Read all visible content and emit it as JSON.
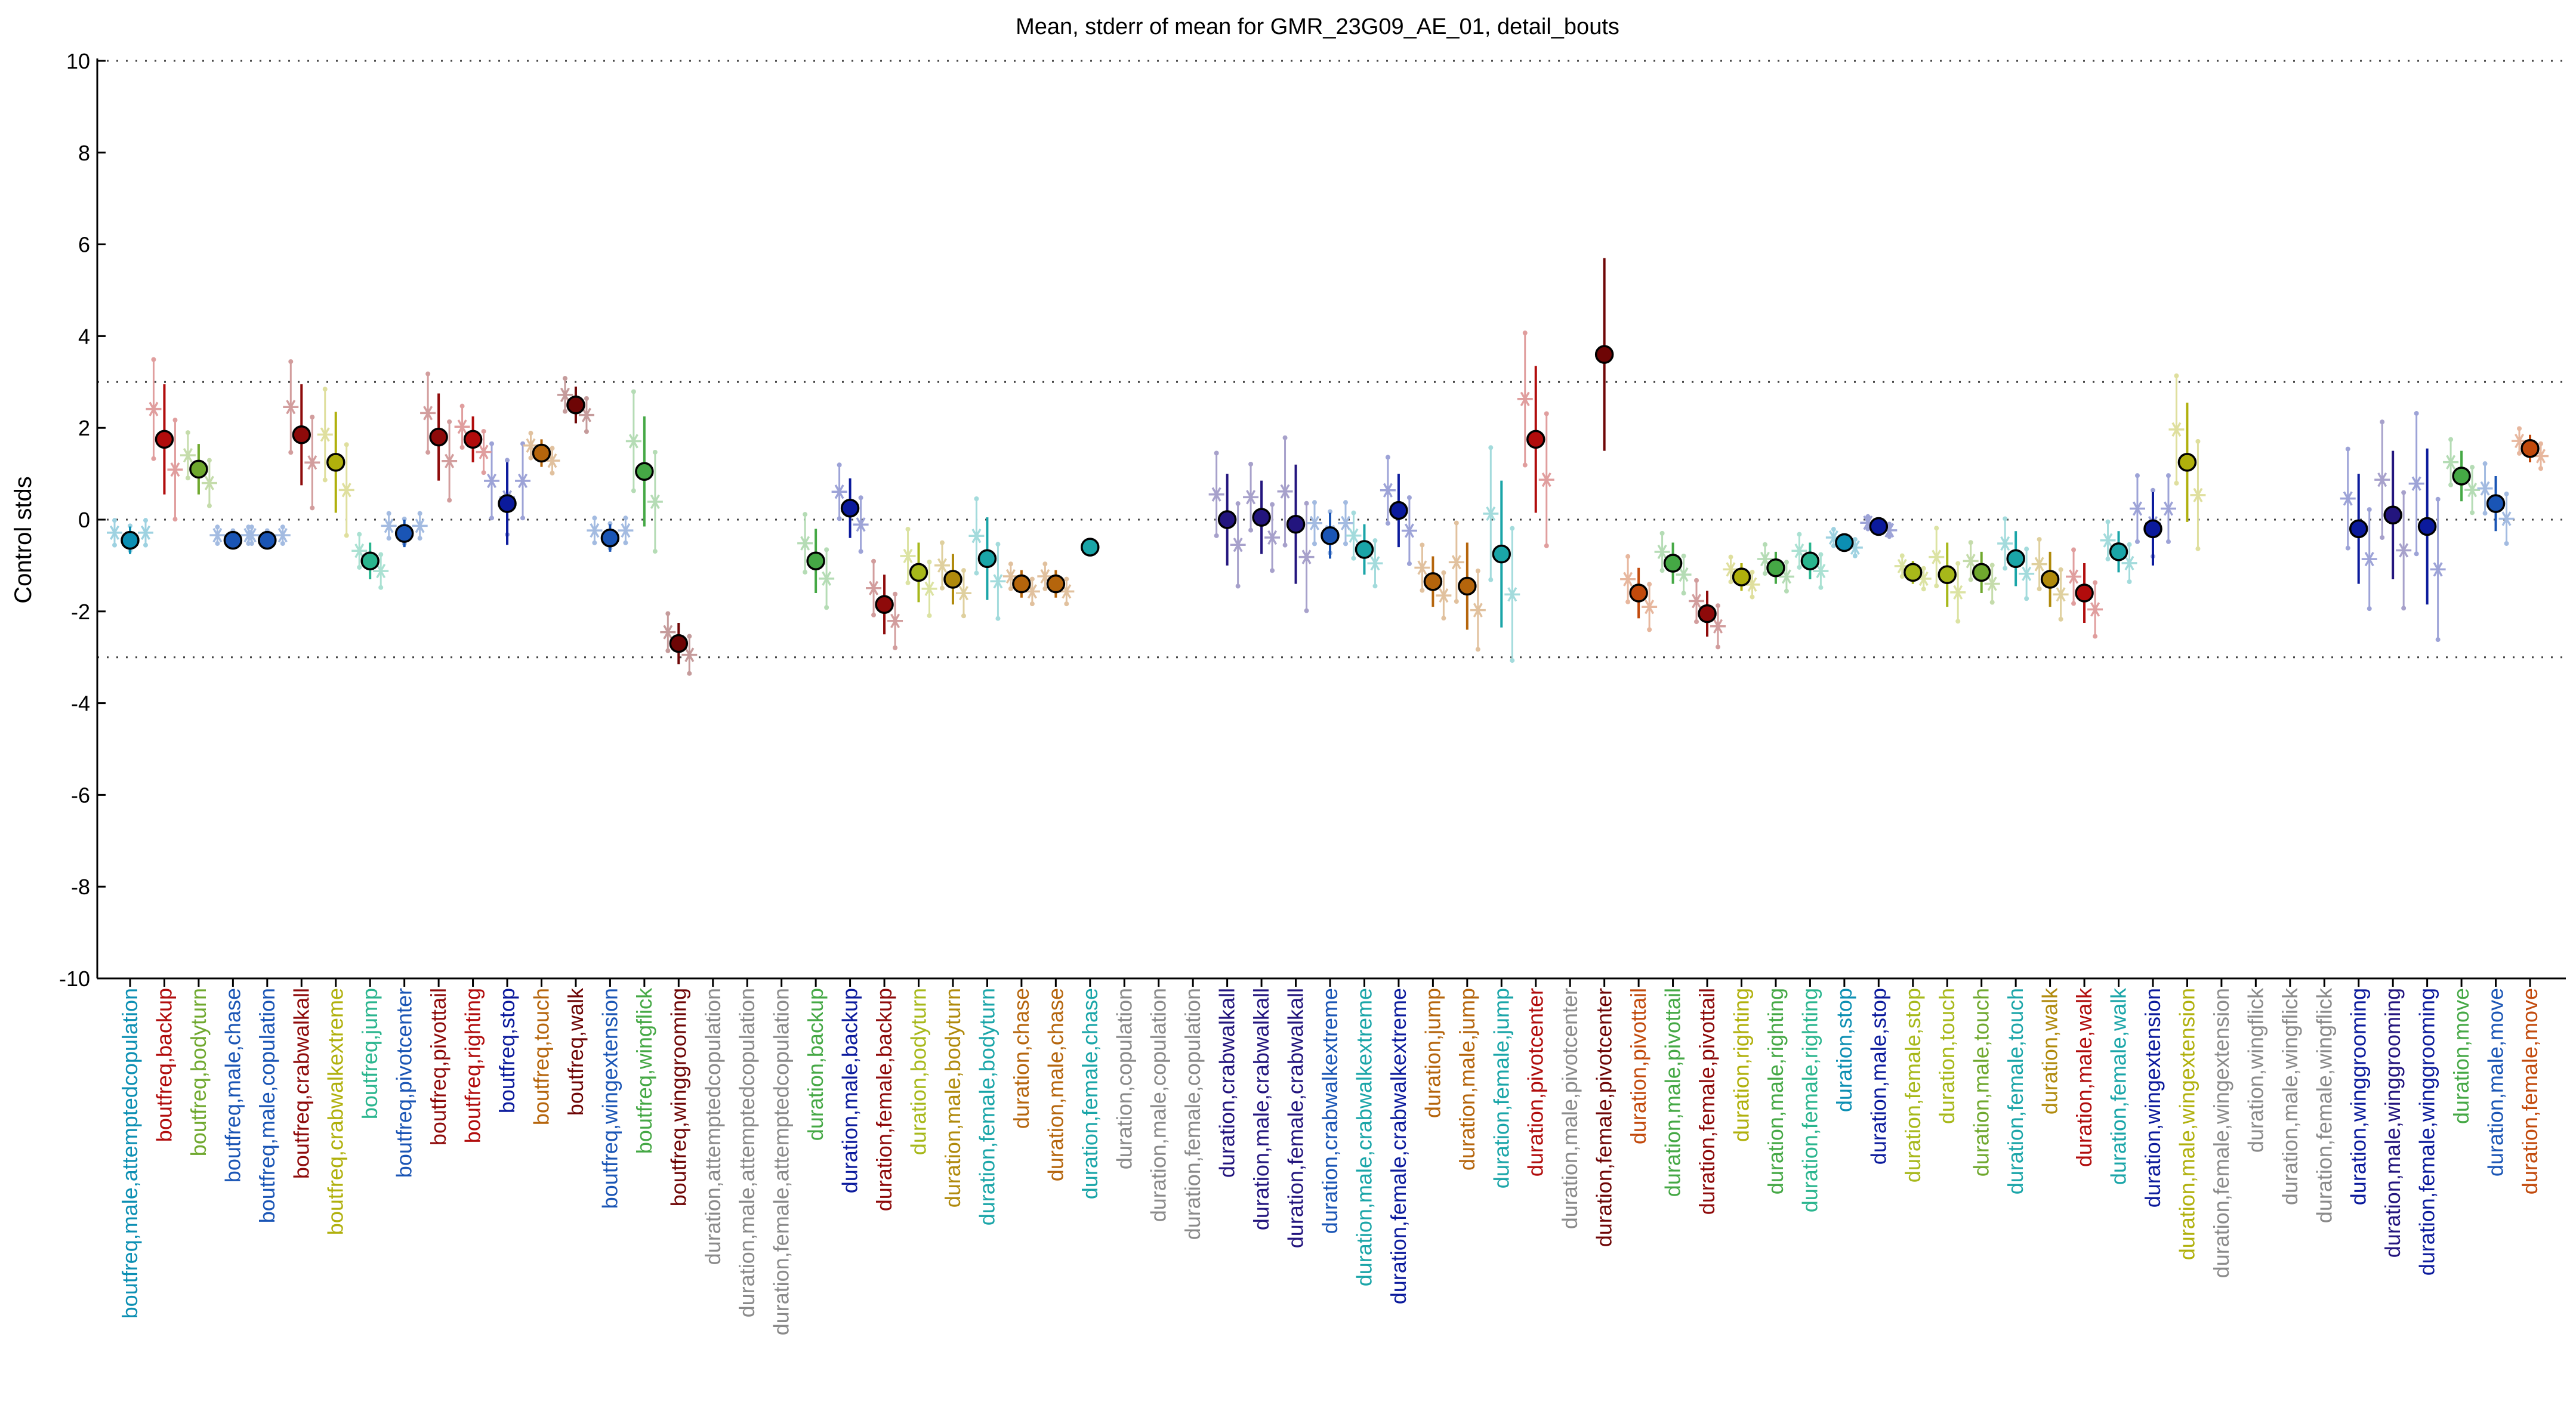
{
  "colors": {
    "teal": "#0c8fb3",
    "red": "#b10c0c",
    "olive": "#6fa82e",
    "blue": "#1a55b5",
    "darkred": "#8e0a0a",
    "gold": "#b0b00c",
    "mint": "#2ab58e",
    "navy": "#0b1a9c",
    "orange": "#b5650c",
    "maroon": "#6e0505",
    "green": "#45a845",
    "gray": "#8a8a8a",
    "dkgold": "#b08a0c",
    "cyan": "#1aa5a8",
    "lime": "#a7b81a",
    "rust": "#c24a0c",
    "indigo": "#23157e"
  },
  "chart_data": {
    "type": "scatter",
    "title": "Mean, stderr of mean for GMR_23G09_AE_01, detail_bouts",
    "ylabel": "Control stds",
    "ylim": [
      -10,
      10
    ],
    "yticks": [
      10,
      8,
      6,
      4,
      2,
      0,
      -2,
      -4,
      -6,
      -8,
      -10
    ],
    "hlines": [
      3,
      0,
      -3
    ],
    "categories": [
      {
        "label": "boutfreq,male,attemptedcopulation",
        "color": "teal",
        "mean": -0.45,
        "err": 0.3,
        "n": 3
      },
      {
        "label": "boutfreq,backup",
        "color": "red",
        "mean": 1.75,
        "err": 1.2,
        "n": 2
      },
      {
        "label": "boutfreq,bodyturn",
        "color": "olive",
        "mean": 1.1,
        "err": 0.55,
        "n": 2
      },
      {
        "label": "boutfreq,male,chase",
        "color": "blue",
        "mean": -0.45,
        "err": 0.2,
        "n": 3
      },
      {
        "label": "boutfreq,male,copulation",
        "color": "blue",
        "mean": -0.45,
        "err": 0.2,
        "n": 3
      },
      {
        "label": "boutfreq,crabwalkall",
        "color": "darkred",
        "mean": 1.85,
        "err": 1.1,
        "n": 2
      },
      {
        "label": "boutfreq,crabwalkextreme",
        "color": "gold",
        "mean": 1.25,
        "err": 1.1,
        "n": 2
      },
      {
        "label": "boutfreq,jump",
        "color": "mint",
        "mean": -0.9,
        "err": 0.4,
        "n": 2
      },
      {
        "label": "boutfreq,pivotcenter",
        "color": "blue",
        "mean": -0.3,
        "err": 0.3,
        "n": 3
      },
      {
        "label": "boutfreq,pivottail",
        "color": "darkred",
        "mean": 1.8,
        "err": 0.95,
        "n": 2
      },
      {
        "label": "boutfreq,righting",
        "color": "red",
        "mean": 1.75,
        "err": 0.5,
        "n": 2
      },
      {
        "label": "boutfreq,stop",
        "color": "navy",
        "mean": 0.35,
        "err": 0.9,
        "n": 3
      },
      {
        "label": "boutfreq,touch",
        "color": "orange",
        "mean": 1.45,
        "err": 0.3,
        "n": 2
      },
      {
        "label": "boutfreq,walk",
        "color": "maroon",
        "mean": 2.5,
        "err": 0.4,
        "n": 2
      },
      {
        "label": "boutfreq,wingextension",
        "color": "blue",
        "mean": -0.4,
        "err": 0.3,
        "n": 3
      },
      {
        "label": "boutfreq,wingflick",
        "color": "green",
        "mean": 1.05,
        "err": 1.2,
        "n": 2
      },
      {
        "label": "boutfreq,winggrooming",
        "color": "maroon",
        "mean": -2.7,
        "err": 0.45,
        "n": 2
      },
      {
        "label": "duration,attemptedcopulation",
        "color": "gray",
        "mean": null,
        "err": 0,
        "n": 0
      },
      {
        "label": "duration,male,attemptedcopulation",
        "color": "gray",
        "mean": null,
        "err": 0,
        "n": 0
      },
      {
        "label": "duration,female,attemptedcopulation",
        "color": "gray",
        "mean": null,
        "err": 0,
        "n": 0
      },
      {
        "label": "duration,backup",
        "color": "green",
        "mean": -0.9,
        "err": 0.7,
        "n": 2
      },
      {
        "label": "duration,male,backup",
        "color": "navy",
        "mean": 0.25,
        "err": 0.65,
        "n": 2
      },
      {
        "label": "duration,female,backup",
        "color": "darkred",
        "mean": -1.85,
        "err": 0.65,
        "n": 2
      },
      {
        "label": "duration,bodyturn",
        "color": "lime",
        "mean": -1.15,
        "err": 0.65,
        "n": 2
      },
      {
        "label": "duration,male,bodyturn",
        "color": "dkgold",
        "mean": -1.3,
        "err": 0.55,
        "n": 2
      },
      {
        "label": "duration,female,bodyturn",
        "color": "cyan",
        "mean": -0.85,
        "err": 0.9,
        "n": 2
      },
      {
        "label": "duration,chase",
        "color": "orange",
        "mean": -1.4,
        "err": 0.3,
        "n": 2
      },
      {
        "label": "duration,male,chase",
        "color": "orange",
        "mean": -1.4,
        "err": 0.3,
        "n": 2
      },
      {
        "label": "duration,female,chase",
        "color": "cyan",
        "mean": -0.6,
        "err": 0.2,
        "n": 1
      },
      {
        "label": "duration,copulation",
        "color": "gray",
        "mean": null,
        "err": 0,
        "n": 0
      },
      {
        "label": "duration,male,copulation",
        "color": "gray",
        "mean": null,
        "err": 0,
        "n": 0
      },
      {
        "label": "duration,female,copulation",
        "color": "gray",
        "mean": null,
        "err": 0,
        "n": 0
      },
      {
        "label": "duration,crabwalkall",
        "color": "indigo",
        "mean": 0.0,
        "err": 1.0,
        "n": 2
      },
      {
        "label": "duration,male,crabwalkall",
        "color": "indigo",
        "mean": 0.05,
        "err": 0.8,
        "n": 2
      },
      {
        "label": "duration,female,crabwalkall",
        "color": "indigo",
        "mean": -0.1,
        "err": 1.3,
        "n": 2
      },
      {
        "label": "duration,crabwalkextreme",
        "color": "blue",
        "mean": -0.35,
        "err": 0.5,
        "n": 3
      },
      {
        "label": "duration,male,crabwalkextreme",
        "color": "cyan",
        "mean": -0.65,
        "err": 0.55,
        "n": 2
      },
      {
        "label": "duration,female,crabwalkextreme",
        "color": "navy",
        "mean": 0.2,
        "err": 0.8,
        "n": 2
      },
      {
        "label": "duration,jump",
        "color": "orange",
        "mean": -1.35,
        "err": 0.55,
        "n": 2
      },
      {
        "label": "duration,male,jump",
        "color": "orange",
        "mean": -1.45,
        "err": 0.95,
        "n": 2
      },
      {
        "label": "duration,female,jump",
        "color": "cyan",
        "mean": -0.75,
        "err": 1.6,
        "n": 2
      },
      {
        "label": "duration,pivotcenter",
        "color": "red",
        "mean": 1.75,
        "err": 1.6,
        "n": 2
      },
      {
        "label": "duration,male,pivotcenter",
        "color": "gray",
        "mean": null,
        "err": 0,
        "n": 0
      },
      {
        "label": "duration,female,pivotcenter",
        "color": "maroon",
        "mean": 3.6,
        "err": 2.1,
        "n": 1
      },
      {
        "label": "duration,pivottail",
        "color": "rust",
        "mean": -1.6,
        "err": 0.55,
        "n": 2
      },
      {
        "label": "duration,male,pivottail",
        "color": "green",
        "mean": -0.95,
        "err": 0.45,
        "n": 2
      },
      {
        "label": "duration,female,pivottail",
        "color": "darkred",
        "mean": -2.05,
        "err": 0.5,
        "n": 2
      },
      {
        "label": "duration,righting",
        "color": "gold",
        "mean": -1.25,
        "err": 0.3,
        "n": 2
      },
      {
        "label": "duration,male,righting",
        "color": "green",
        "mean": -1.05,
        "err": 0.35,
        "n": 2
      },
      {
        "label": "duration,female,righting",
        "color": "mint",
        "mean": -0.9,
        "err": 0.4,
        "n": 2
      },
      {
        "label": "duration,stop",
        "color": "teal",
        "mean": -0.5,
        "err": 0.2,
        "n": 2
      },
      {
        "label": "duration,male,stop",
        "color": "navy",
        "mean": -0.15,
        "err": 0.15,
        "n": 2
      },
      {
        "label": "duration,female,stop",
        "color": "lime",
        "mean": -1.15,
        "err": 0.25,
        "n": 2
      },
      {
        "label": "duration,touch",
        "color": "lime",
        "mean": -1.2,
        "err": 0.7,
        "n": 2
      },
      {
        "label": "duration,male,touch",
        "color": "olive",
        "mean": -1.15,
        "err": 0.45,
        "n": 2
      },
      {
        "label": "duration,female,touch",
        "color": "cyan",
        "mean": -0.85,
        "err": 0.6,
        "n": 2
      },
      {
        "label": "duration,walk",
        "color": "dkgold",
        "mean": -1.3,
        "err": 0.6,
        "n": 2
      },
      {
        "label": "duration,male,walk",
        "color": "red",
        "mean": -1.6,
        "err": 0.65,
        "n": 2
      },
      {
        "label": "duration,female,walk",
        "color": "cyan",
        "mean": -0.7,
        "err": 0.45,
        "n": 2
      },
      {
        "label": "duration,wingextension",
        "color": "navy",
        "mean": -0.2,
        "err": 0.8,
        "n": 3
      },
      {
        "label": "duration,male,wingextension",
        "color": "gold",
        "mean": 1.25,
        "err": 1.3,
        "n": 2
      },
      {
        "label": "duration,female,wingextension",
        "color": "gray",
        "mean": null,
        "err": 0,
        "n": 0
      },
      {
        "label": "duration,wingflick",
        "color": "gray",
        "mean": null,
        "err": 0,
        "n": 0
      },
      {
        "label": "duration,male,wingflick",
        "color": "gray",
        "mean": null,
        "err": 0,
        "n": 0
      },
      {
        "label": "duration,female,wingflick",
        "color": "gray",
        "mean": null,
        "err": 0,
        "n": 0
      },
      {
        "label": "duration,winggrooming",
        "color": "navy",
        "mean": -0.2,
        "err": 1.2,
        "n": 2
      },
      {
        "label": "duration,male,winggrooming",
        "color": "indigo",
        "mean": 0.1,
        "err": 1.4,
        "n": 2
      },
      {
        "label": "duration,female,winggrooming",
        "color": "navy",
        "mean": -0.15,
        "err": 1.7,
        "n": 2
      },
      {
        "label": "duration,move",
        "color": "green",
        "mean": 0.95,
        "err": 0.55,
        "n": 2
      },
      {
        "label": "duration,male,move",
        "color": "blue",
        "mean": 0.35,
        "err": 0.6,
        "n": 2
      },
      {
        "label": "duration,female,move",
        "color": "rust",
        "mean": 1.55,
        "err": 0.3,
        "n": 2
      }
    ]
  }
}
